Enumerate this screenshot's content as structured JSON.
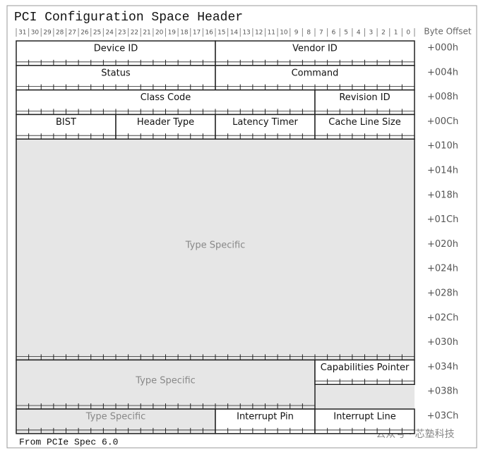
{
  "header": {
    "title": "PCI Configuration Space Header",
    "byte_offset_label": "Byte Offset"
  },
  "bit_labels": [
    31,
    30,
    29,
    28,
    27,
    26,
    25,
    24,
    23,
    22,
    21,
    20,
    19,
    18,
    17,
    16,
    15,
    14,
    13,
    12,
    11,
    10,
    9,
    8,
    7,
    6,
    5,
    4,
    3,
    2,
    1,
    0
  ],
  "offsets": [
    "+000h",
    "+004h",
    "+008h",
    "+00Ch",
    "+010h",
    "+014h",
    "+018h",
    "+01Ch",
    "+020h",
    "+024h",
    "+028h",
    "+02Ch",
    "+030h",
    "+034h",
    "+038h",
    "+03Ch"
  ],
  "fields": [
    {
      "label": "Device ID"
    },
    {
      "label": "Vendor ID"
    },
    {
      "label": "Status"
    },
    {
      "label": "Command"
    },
    {
      "label": "Class Code"
    },
    {
      "label": "Revision ID"
    },
    {
      "label": "BIST"
    },
    {
      "label": "Header Type"
    },
    {
      "label": "Latency Timer"
    },
    {
      "label": "Cache Line Size"
    },
    {
      "label": "Type Specific"
    },
    {
      "label": "Type Specific"
    },
    {
      "label": "Capabilities Pointer"
    },
    {
      "label": "Type Specific"
    },
    {
      "label": "Interrupt Pin"
    },
    {
      "label": "Interrupt Line"
    }
  ],
  "footer": {
    "source": "From PCIe Spec 6.0",
    "watermark": "公众号 · 芯塾科技"
  }
}
